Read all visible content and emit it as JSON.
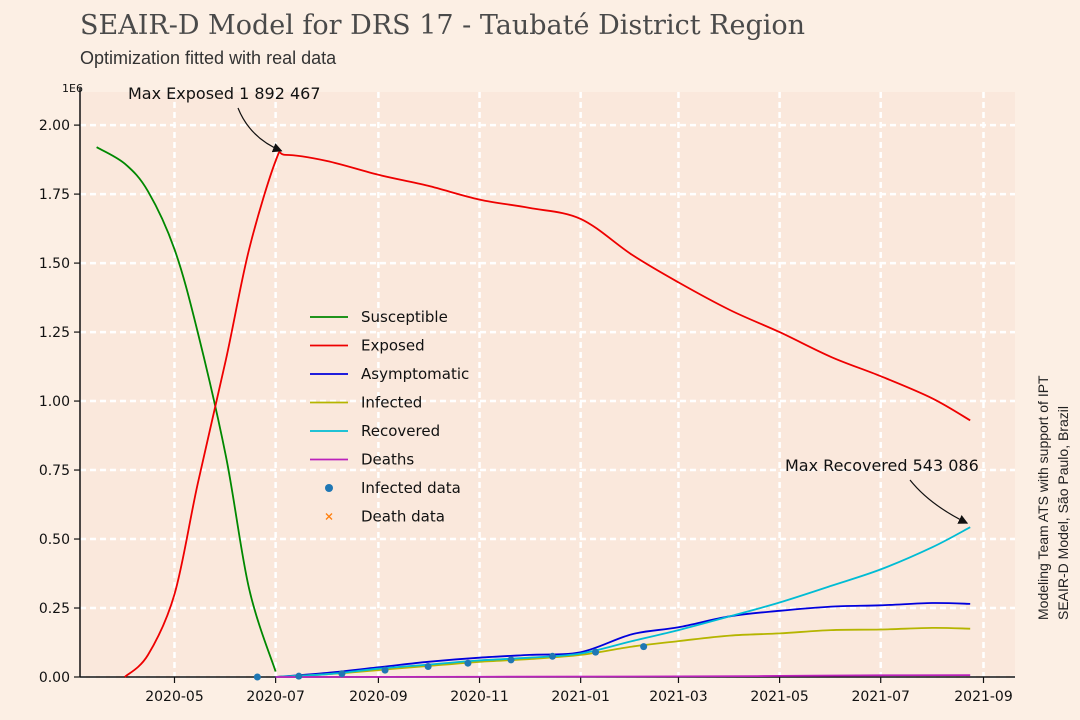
{
  "chart_data": {
    "type": "line",
    "title": "SEAIR-D Model for DRS 17 - Taubaté District Region",
    "subtitle": "Optimization fitted with real data",
    "y_multiplier": "1E6",
    "side_text": [
      "Modeling Team ATS with support of IPT",
      "SEAIR-D Model, São Paulo, Brazil"
    ],
    "xlim": [
      "2020-03-05",
      "2021-09-20"
    ],
    "ylim": [
      0,
      2.12
    ],
    "x_ticks": [
      "2020-05",
      "2020-07",
      "2020-09",
      "2020-11",
      "2021-01",
      "2021-03",
      "2021-05",
      "2021-07",
      "2021-09"
    ],
    "y_ticks": [
      "0.00",
      "0.25",
      "0.50",
      "0.75",
      "1.00",
      "1.25",
      "1.50",
      "1.75",
      "2.00"
    ],
    "grid": true,
    "legend_position": "center-left",
    "annotations": [
      {
        "text": "Max Exposed 1 892 467",
        "x": "2020-07-07",
        "y": 1.892
      },
      {
        "text": "Max Recovered 543 086",
        "x": "2021-08-24",
        "y": 0.543
      }
    ],
    "series": [
      {
        "name": "Susceptible",
        "color": "#008800",
        "points": [
          [
            "2020-03-15",
            1.92
          ],
          [
            "2020-04-01",
            1.86
          ],
          [
            "2020-04-15",
            1.76
          ],
          [
            "2020-05-01",
            1.55
          ],
          [
            "2020-05-15",
            1.25
          ],
          [
            "2020-06-01",
            0.8
          ],
          [
            "2020-06-15",
            0.32
          ],
          [
            "2020-07-01",
            0.02
          ]
        ]
      },
      {
        "name": "Exposed",
        "color": "#ee0000",
        "points": [
          [
            "2020-04-01",
            0.0
          ],
          [
            "2020-04-15",
            0.08
          ],
          [
            "2020-05-01",
            0.3
          ],
          [
            "2020-05-15",
            0.7
          ],
          [
            "2020-06-01",
            1.15
          ],
          [
            "2020-06-15",
            1.55
          ],
          [
            "2020-07-01",
            1.87
          ],
          [
            "2020-07-07",
            1.892
          ],
          [
            "2020-08-01",
            1.87
          ],
          [
            "2020-09-01",
            1.82
          ],
          [
            "2020-10-01",
            1.78
          ],
          [
            "2020-11-01",
            1.73
          ],
          [
            "2020-12-01",
            1.7
          ],
          [
            "2021-01-01",
            1.66
          ],
          [
            "2021-02-01",
            1.53
          ],
          [
            "2021-03-01",
            1.43
          ],
          [
            "2021-04-01",
            1.33
          ],
          [
            "2021-05-01",
            1.25
          ],
          [
            "2021-06-01",
            1.16
          ],
          [
            "2021-07-01",
            1.09
          ],
          [
            "2021-08-01",
            1.01
          ],
          [
            "2021-08-24",
            0.93
          ]
        ]
      },
      {
        "name": "Asymptomatic",
        "color": "#0000dd",
        "points": [
          [
            "2020-07-01",
            0.0
          ],
          [
            "2020-08-01",
            0.015
          ],
          [
            "2020-09-01",
            0.035
          ],
          [
            "2020-10-01",
            0.055
          ],
          [
            "2020-11-01",
            0.07
          ],
          [
            "2020-12-01",
            0.08
          ],
          [
            "2021-01-01",
            0.09
          ],
          [
            "2021-02-01",
            0.155
          ],
          [
            "2021-03-01",
            0.18
          ],
          [
            "2021-04-01",
            0.22
          ],
          [
            "2021-05-01",
            0.24
          ],
          [
            "2021-06-01",
            0.255
          ],
          [
            "2021-07-01",
            0.26
          ],
          [
            "2021-08-01",
            0.268
          ],
          [
            "2021-08-24",
            0.265
          ]
        ]
      },
      {
        "name": "Infected",
        "color": "#b5b500",
        "points": [
          [
            "2020-07-01",
            0.0
          ],
          [
            "2020-08-01",
            0.01
          ],
          [
            "2020-09-01",
            0.025
          ],
          [
            "2020-10-01",
            0.04
          ],
          [
            "2020-11-01",
            0.055
          ],
          [
            "2020-12-01",
            0.065
          ],
          [
            "2021-01-01",
            0.08
          ],
          [
            "2021-02-01",
            0.11
          ],
          [
            "2021-03-01",
            0.13
          ],
          [
            "2021-04-01",
            0.15
          ],
          [
            "2021-05-01",
            0.158
          ],
          [
            "2021-06-01",
            0.17
          ],
          [
            "2021-07-01",
            0.172
          ],
          [
            "2021-08-01",
            0.178
          ],
          [
            "2021-08-24",
            0.175
          ]
        ]
      },
      {
        "name": "Recovered",
        "color": "#00bcd4",
        "points": [
          [
            "2020-07-01",
            0.0
          ],
          [
            "2020-08-01",
            0.01
          ],
          [
            "2020-09-01",
            0.03
          ],
          [
            "2020-10-01",
            0.045
          ],
          [
            "2020-11-01",
            0.06
          ],
          [
            "2020-12-01",
            0.07
          ],
          [
            "2021-01-01",
            0.085
          ],
          [
            "2021-02-01",
            0.13
          ],
          [
            "2021-03-01",
            0.17
          ],
          [
            "2021-04-01",
            0.22
          ],
          [
            "2021-05-01",
            0.27
          ],
          [
            "2021-06-01",
            0.33
          ],
          [
            "2021-07-01",
            0.39
          ],
          [
            "2021-08-01",
            0.47
          ],
          [
            "2021-08-24",
            0.543
          ]
        ]
      },
      {
        "name": "Deaths",
        "color": "#bb22bb",
        "points": [
          [
            "2020-07-01",
            0.0
          ],
          [
            "2021-03-01",
            0.002
          ],
          [
            "2021-05-01",
            0.004
          ],
          [
            "2021-07-01",
            0.006
          ],
          [
            "2021-08-24",
            0.007
          ]
        ]
      }
    ],
    "scatter_series": [
      {
        "name": "Infected data",
        "color": "#1f77b4",
        "marker": "circle",
        "points": [
          [
            "2020-06-20",
            0.0
          ],
          [
            "2020-07-15",
            0.003
          ],
          [
            "2020-08-10",
            0.012
          ],
          [
            "2020-09-05",
            0.025
          ],
          [
            "2020-10-01",
            0.038
          ],
          [
            "2020-10-25",
            0.05
          ],
          [
            "2020-11-20",
            0.062
          ],
          [
            "2020-12-15",
            0.075
          ],
          [
            "2021-01-10",
            0.09
          ],
          [
            "2021-02-08",
            0.11
          ]
        ]
      },
      {
        "name": "Death data",
        "color": "#ff7f0e",
        "marker": "x",
        "points": []
      }
    ]
  }
}
